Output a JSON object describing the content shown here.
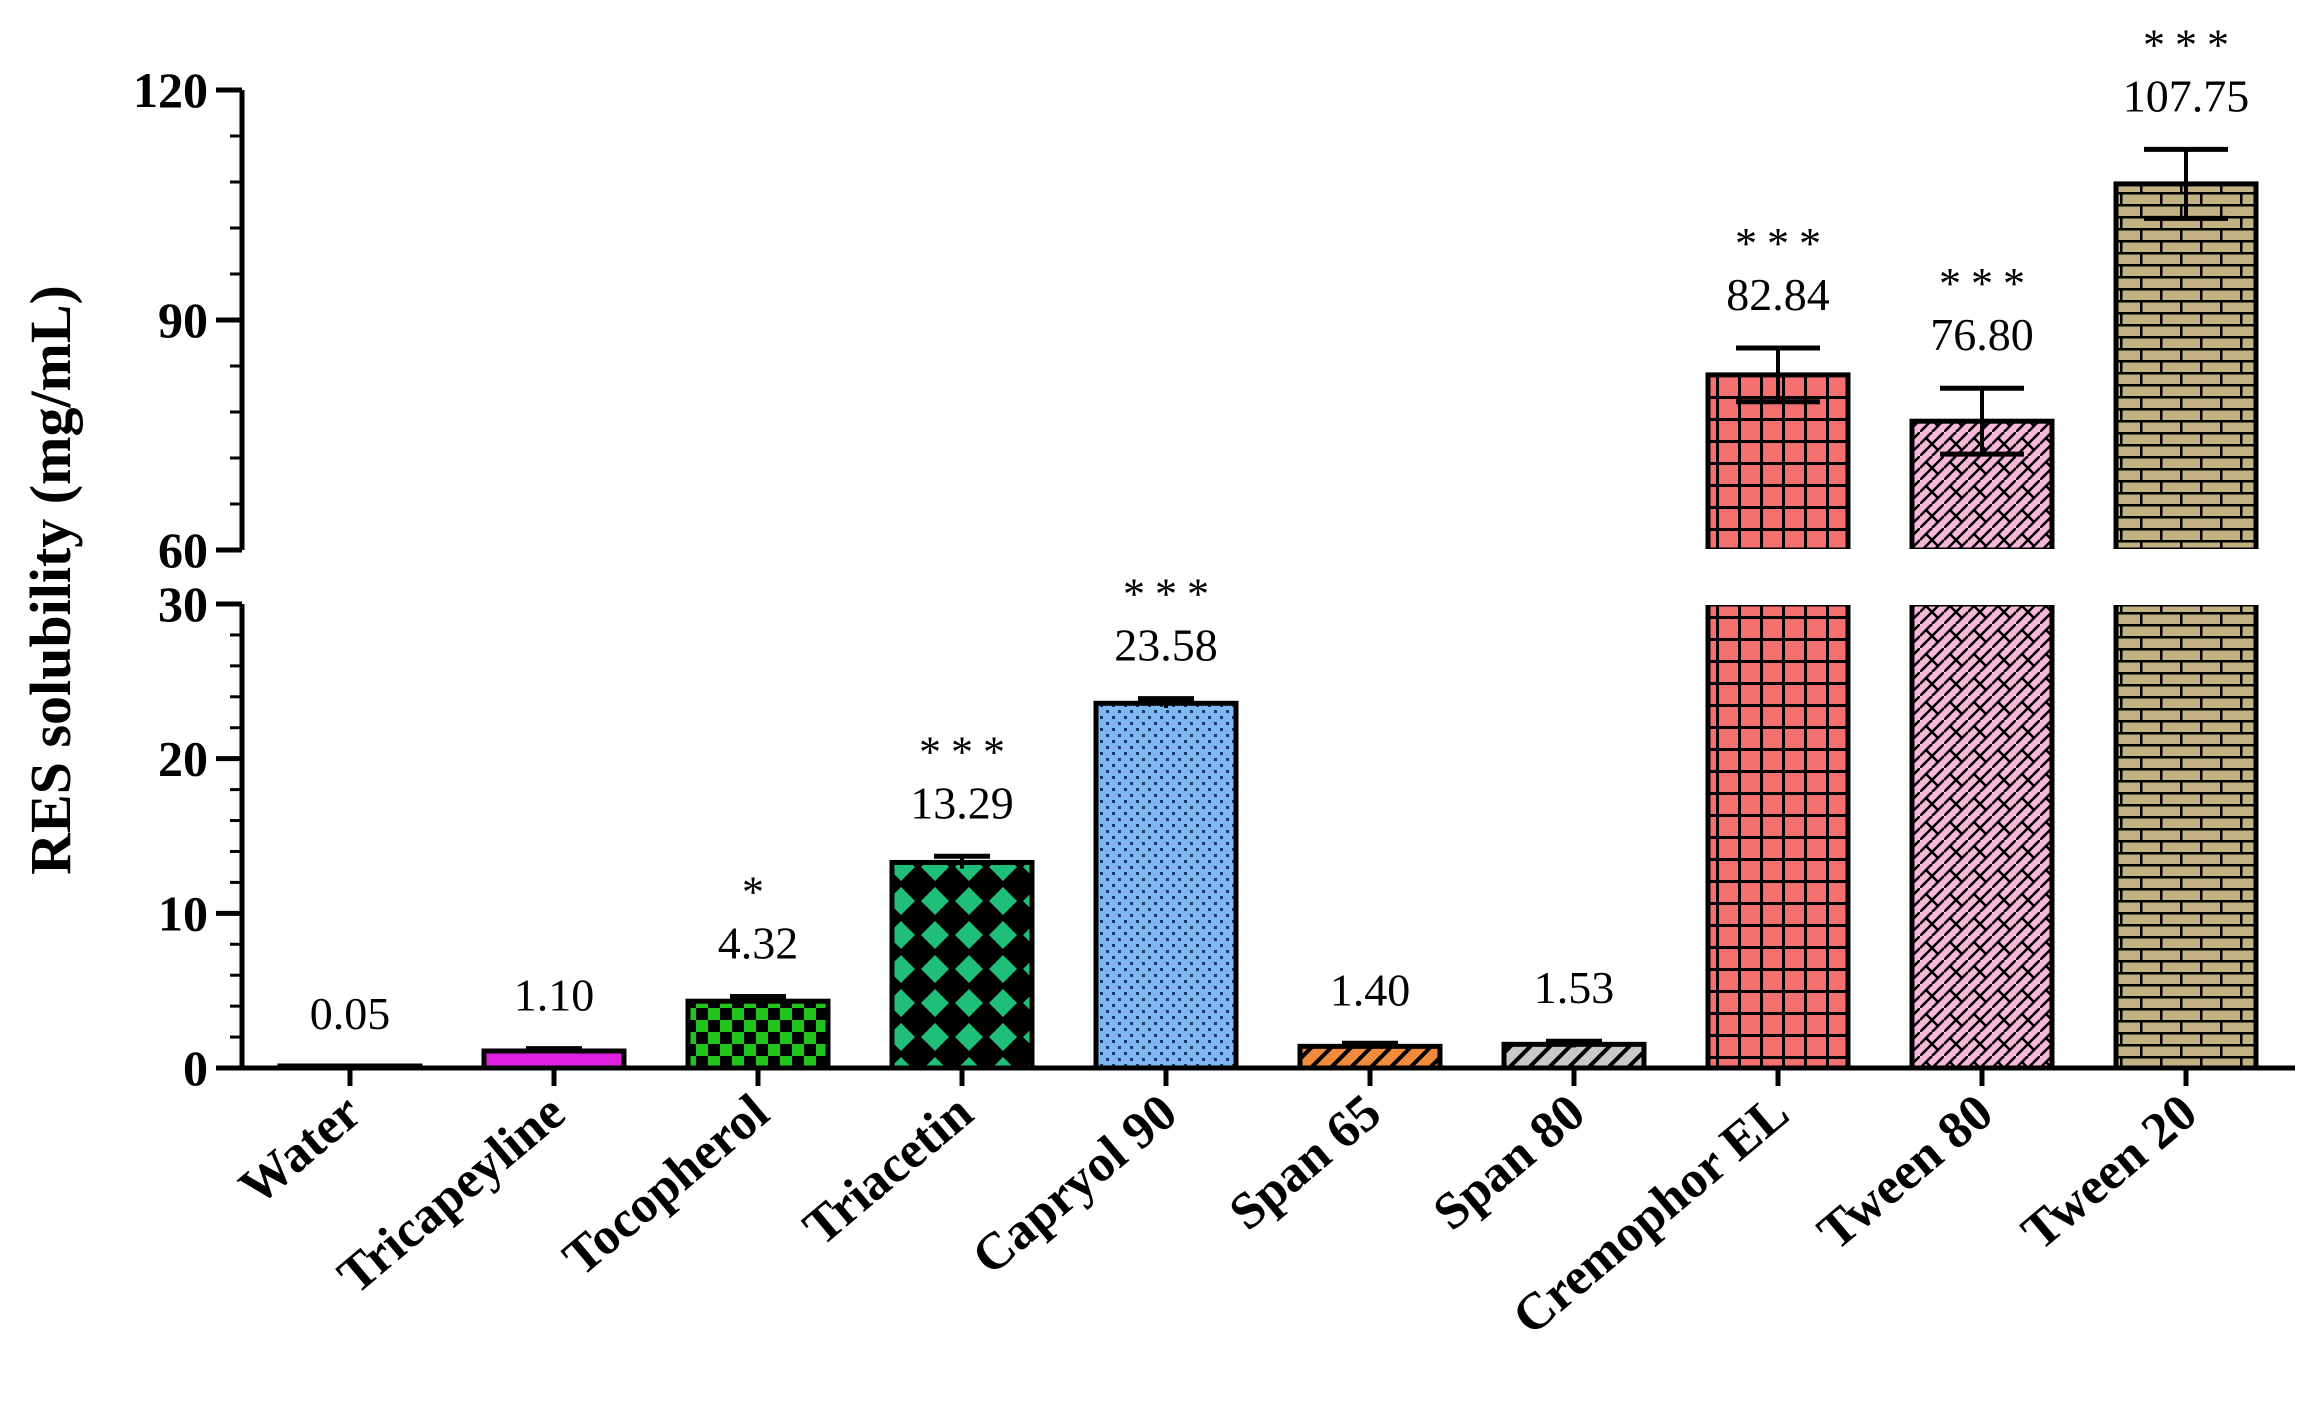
{
  "chart_data": {
    "type": "bar",
    "title": "",
    "xlabel": "",
    "ylabel": "RES solubility (mg/mL)",
    "axis_break": {
      "lower_range": [
        0,
        30
      ],
      "upper_range": [
        60,
        120
      ]
    },
    "yticks_lower": [
      "0",
      "10",
      "20",
      "30"
    ],
    "yticks_upper": [
      "60",
      "90",
      "120"
    ],
    "categories": [
      "Water",
      "Tricapeyline",
      "Tocopherol",
      "Triacetin",
      "Capryol 90",
      "Span 65",
      "Span 80",
      "Cremophor EL",
      "Tween 80",
      "Tween 20"
    ],
    "values": [
      0.05,
      1.1,
      4.32,
      13.29,
      23.58,
      1.4,
      1.53,
      82.84,
      76.8,
      107.75
    ],
    "value_labels": [
      "0.05",
      "1.10",
      "4.32",
      "13.29",
      "23.58",
      "1.40",
      "1.53",
      "82.84",
      "76.80",
      "107.75"
    ],
    "errors": [
      0.02,
      0.15,
      0.3,
      0.4,
      0.3,
      0.2,
      0.2,
      3.5,
      4.3,
      4.5
    ],
    "significance": [
      "",
      "",
      "*",
      "***",
      "***",
      "",
      "",
      "***",
      "***",
      "***"
    ],
    "colors": [
      "#9fa8da",
      "#e020e0",
      "#22c41e",
      "#1fbf7a",
      "#7fb7f0",
      "#f08a3c",
      "#c8c8c8",
      "#f46f6f",
      "#f6b7d9",
      "#c2b283"
    ],
    "patterns": [
      "solid",
      "solid",
      "checker",
      "diamond",
      "dots",
      "hatch",
      "hatch",
      "grid",
      "herringbone",
      "brick"
    ]
  }
}
